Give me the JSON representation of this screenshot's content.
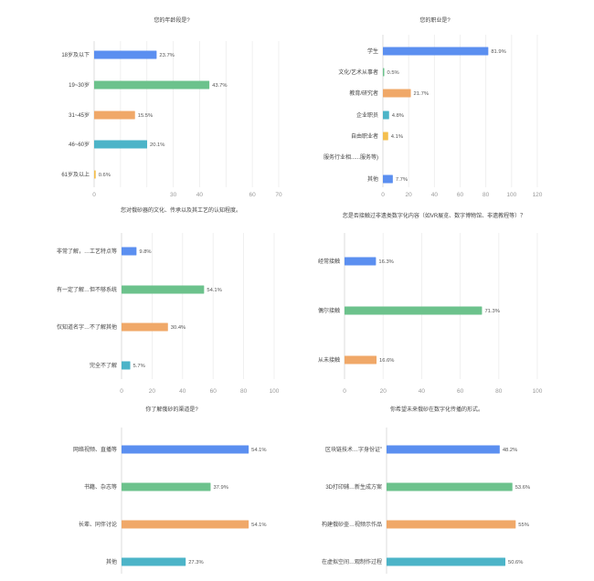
{
  "chart_data": [
    {
      "type": "bar",
      "orientation": "horizontal",
      "title": "您的年龄段是?",
      "categories": [
        "18岁及以下",
        "19~30岁",
        "31~45岁",
        "46~60岁",
        "61岁及以上"
      ],
      "values": [
        23.7,
        43.7,
        15.5,
        20.1,
        0.6
      ],
      "value_labels": [
        "23.7%",
        "43.7%",
        "15.5%",
        "20.1%",
        "0.6%"
      ],
      "colors": [
        "#5b8ff0",
        "#6cc28c",
        "#f0a868",
        "#4cb4c8",
        "#f4bf4f"
      ],
      "xlim": [
        0,
        70
      ],
      "xticks": [
        "0",
        "10",
        "20",
        "30",
        "40",
        "50",
        "60",
        "70"
      ],
      "tick_labels_shown": [
        "0",
        "30",
        "40",
        "60",
        "70"
      ]
    },
    {
      "type": "bar",
      "orientation": "horizontal",
      "title": "您的职业是?",
      "categories": [
        "学生",
        "文化/艺术从事者",
        "教育/研究者",
        "企业职员",
        "自由职业者",
        "服务行业相......服务等)",
        "其他"
      ],
      "values": [
        81.9,
        0.5,
        21.7,
        4.8,
        4.1,
        0,
        7.7
      ],
      "value_labels": [
        "81.9%",
        "0.5%",
        "21.7%",
        "4.8%",
        "4.1%",
        "",
        "7.7%"
      ],
      "colors": [
        "#5b8ff0",
        "#6cc28c",
        "#f0a868",
        "#4cb4c8",
        "#f4bf4f",
        "#a0a0a0",
        "#5b8ff0"
      ],
      "xlim": [
        0,
        120
      ],
      "xticks": [
        "0",
        "20",
        "40",
        "60",
        "80",
        "100",
        "120"
      ]
    },
    {
      "type": "bar",
      "orientation": "horizontal",
      "title": "您对俄砂器的文化、传承以及其工艺的认知程度。",
      "categories": [
        "非常了解，…工艺特点等",
        "有一定了解…但不够系统",
        "仅知道名字…不了解其他",
        "完全不了解"
      ],
      "values": [
        9.8,
        54.1,
        30.4,
        5.7
      ],
      "value_labels": [
        "9.8%",
        "54.1%",
        "30.4%",
        "5.7%"
      ],
      "colors": [
        "#5b8ff0",
        "#6cc28c",
        "#f0a868",
        "#4cb4c8"
      ],
      "xlim": [
        0,
        100
      ],
      "xticks": [
        "0",
        "20",
        "40",
        "60",
        "80",
        "100"
      ]
    },
    {
      "type": "bar",
      "orientation": "horizontal",
      "title": "您是否接触过非遗类数字化内容（如VR展览、数字博物馆、非遗教程等）？",
      "categories": [
        "经常接触",
        "偶尔接触",
        "从未接触"
      ],
      "values": [
        16.3,
        71.3,
        16.6
      ],
      "value_labels": [
        "16.3%",
        "71.3%",
        "16.6%"
      ],
      "colors": [
        "#5b8ff0",
        "#6cc28c",
        "#f0a868"
      ],
      "xlim": [
        0,
        100
      ],
      "xticks": [
        "0",
        "20",
        "40",
        "60",
        "80",
        "100"
      ]
    },
    {
      "type": "bar",
      "orientation": "horizontal",
      "title": "你了解俄砂的渠道是?",
      "categories": [
        "网络视频、直播等",
        "书籍、杂志等",
        "长辈、同伴讨论",
        "其他"
      ],
      "values": [
        54.1,
        37.9,
        54.1,
        27.3
      ],
      "value_labels": [
        "54.1%",
        "37.9%",
        "54.1%",
        "27.3%"
      ],
      "colors": [
        "#5b8ff0",
        "#6cc28c",
        "#f0a868",
        "#4cb4c8"
      ],
      "xlim": [
        0,
        70
      ]
    },
    {
      "type": "bar",
      "orientation": "horizontal",
      "title": "你希望未来俄砂在数字化传播的形式。",
      "categories": [
        "区块链技术…字身份证”",
        "3D打印辅…新生成方案",
        "构建俄砂壶…视频示作品",
        "在虚拟空间…观制作过程"
      ],
      "values": [
        48.2,
        53.6,
        55,
        50.6
      ],
      "value_labels": [
        "48.2%",
        "53.6%",
        "55%",
        "50.6%"
      ],
      "colors": [
        "#5b8ff0",
        "#6cc28c",
        "#f0a868",
        "#4cb4c8"
      ],
      "xlim": [
        0,
        65
      ]
    }
  ]
}
